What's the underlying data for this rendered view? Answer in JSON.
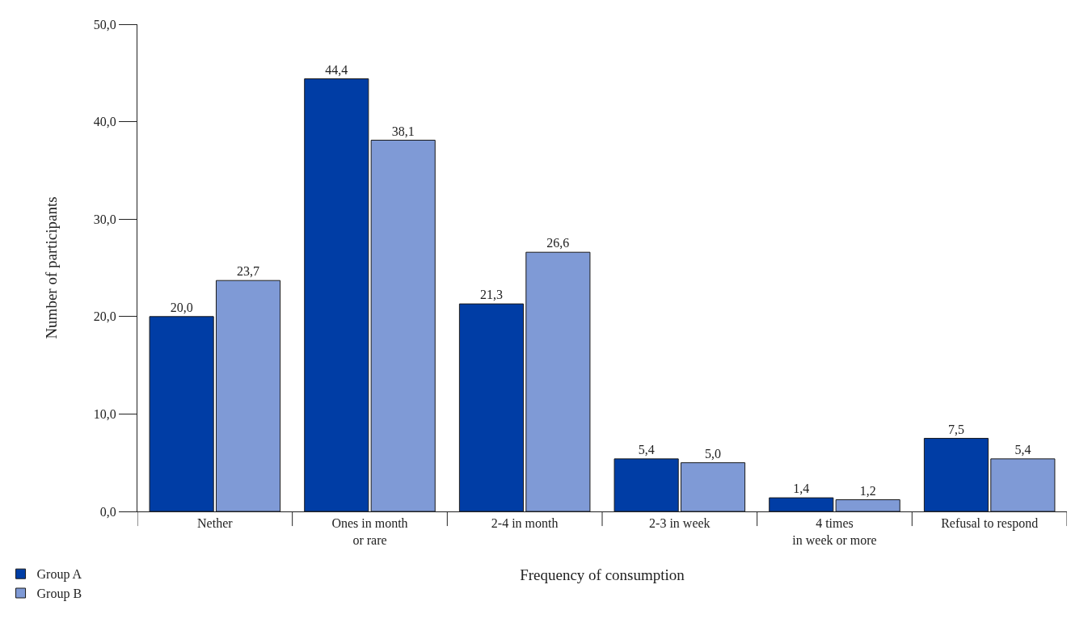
{
  "chart_data": {
    "type": "bar",
    "xlabel": "Frequency of consumption",
    "ylabel": "Number of participants",
    "categories": [
      "Nether",
      "Ones in month\nor rare",
      "2-4 in month",
      "2-3 in week",
      "4 times\nin week or more",
      "Refusal to respond"
    ],
    "series": [
      {
        "name": "Group A",
        "color": "#003da5",
        "values": [
          20.0,
          44.4,
          21.3,
          5.4,
          1.4,
          7.5
        ],
        "value_labels": [
          "20,0",
          "44,4",
          "21,3",
          "5,4",
          "1,4",
          "7,5"
        ]
      },
      {
        "name": "Group B",
        "color": "#7f9ad6",
        "values": [
          23.7,
          38.1,
          26.6,
          5.0,
          1.2,
          5.4
        ],
        "value_labels": [
          "23,7",
          "38,1",
          "26,6",
          "5,0",
          "1,2",
          "5,4"
        ]
      }
    ],
    "ylim": [
      0,
      50
    ],
    "yticks": [
      {
        "value": 0,
        "label": "0,0"
      },
      {
        "value": 10,
        "label": "10,0"
      },
      {
        "value": 20,
        "label": "20,0"
      },
      {
        "value": 30,
        "label": "30,0"
      },
      {
        "value": 40,
        "label": "40,0"
      },
      {
        "value": 50,
        "label": "50,0"
      }
    ],
    "legend": "bottom left"
  }
}
